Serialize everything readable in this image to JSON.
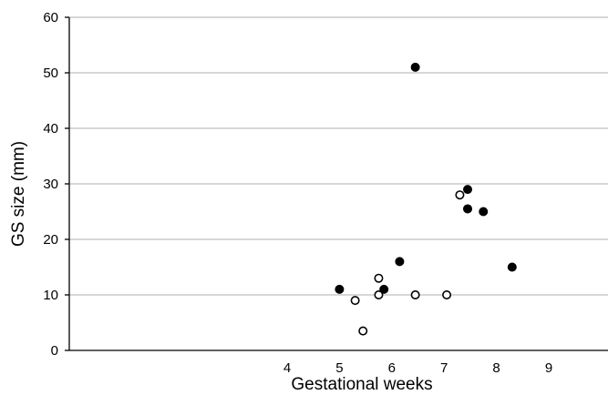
{
  "chart_data": {
    "type": "scatter",
    "xlabel": "Gestational weeks",
    "ylabel": "GS size (mm)",
    "ylim": [
      0,
      60
    ],
    "yticks": [
      0,
      10,
      20,
      30,
      40,
      50,
      60
    ],
    "xticks": [
      4,
      5,
      6,
      7,
      8,
      9
    ],
    "grid": "horizontal",
    "series": [
      {
        "marker": "filled",
        "color": "#000000",
        "points": [
          {
            "x": 5.0,
            "y": 11
          },
          {
            "x": 5.85,
            "y": 11
          },
          {
            "x": 6.15,
            "y": 16
          },
          {
            "x": 6.45,
            "y": 51
          },
          {
            "x": 7.45,
            "y": 29
          },
          {
            "x": 7.45,
            "y": 25.5
          },
          {
            "x": 7.75,
            "y": 25
          },
          {
            "x": 8.3,
            "y": 15
          }
        ]
      },
      {
        "marker": "open",
        "color": "#000000",
        "points": [
          {
            "x": 5.3,
            "y": 9
          },
          {
            "x": 5.45,
            "y": 3.5
          },
          {
            "x": 5.75,
            "y": 13
          },
          {
            "x": 5.75,
            "y": 10
          },
          {
            "x": 6.45,
            "y": 10
          },
          {
            "x": 7.05,
            "y": 10
          },
          {
            "x": 7.3,
            "y": 28
          }
        ]
      }
    ]
  }
}
